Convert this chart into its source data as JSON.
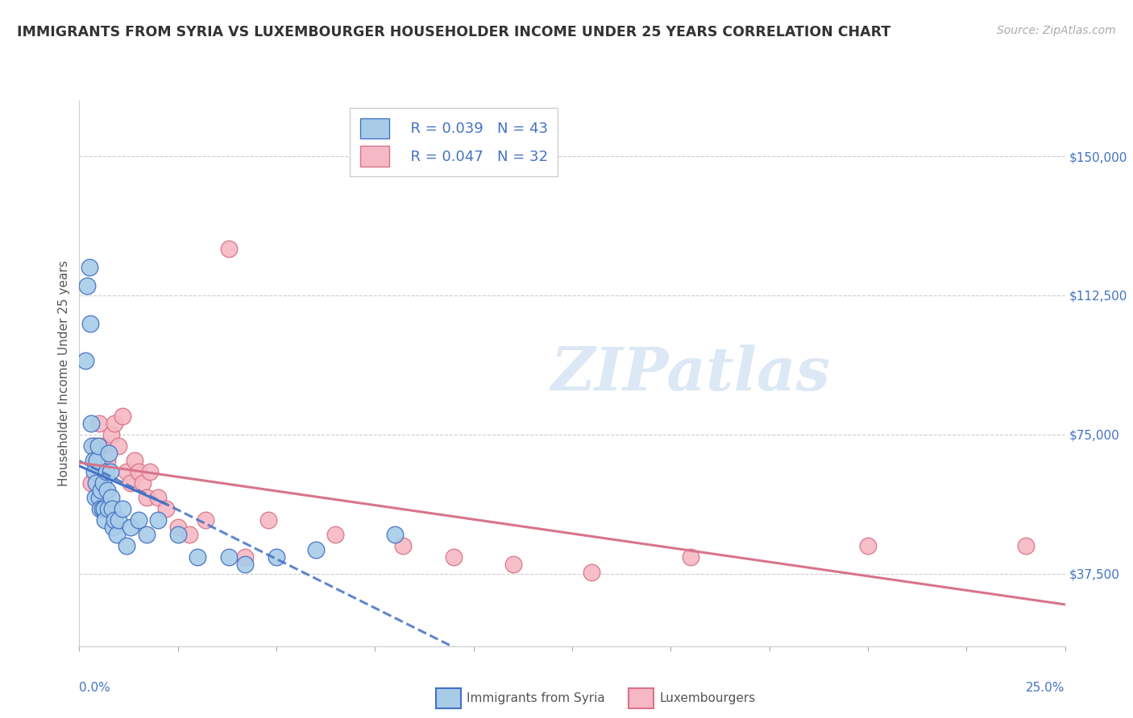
{
  "title": "IMMIGRANTS FROM SYRIA VS LUXEMBOURGER HOUSEHOLDER INCOME UNDER 25 YEARS CORRELATION CHART",
  "source": "Source: ZipAtlas.com",
  "ylabel": "Householder Income Under 25 years",
  "xmin": 0.0,
  "xmax": 0.25,
  "ymin": 18000,
  "ymax": 165000,
  "yticks": [
    37500,
    75000,
    112500,
    150000
  ],
  "ytick_labels": [
    "$37,500",
    "$75,000",
    "$112,500",
    "$150,000"
  ],
  "legend_r1": "R = 0.039",
  "legend_n1": "N = 43",
  "legend_r2": "R = 0.047",
  "legend_n2": "N = 32",
  "color_blue_fill": "#a8cce8",
  "color_blue_edge": "#4472c4",
  "color_pink_fill": "#f5b8c4",
  "color_pink_edge": "#d9748a",
  "color_blue_line": "#4472c4",
  "color_pink_line": "#d9748a",
  "watermark_color": "#dce8f5",
  "background_color": "#ffffff",
  "grid_color": "#cccccc",
  "tick_color": "#4472c4",
  "syria_x": [
    0.0015,
    0.002,
    0.0025,
    0.0028,
    0.003,
    0.0032,
    0.0035,
    0.0038,
    0.004,
    0.0042,
    0.0045,
    0.0048,
    0.005,
    0.0052,
    0.0055,
    0.0058,
    0.006,
    0.0062,
    0.0065,
    0.0068,
    0.007,
    0.0072,
    0.0075,
    0.0078,
    0.008,
    0.0082,
    0.0085,
    0.009,
    0.0095,
    0.01,
    0.011,
    0.012,
    0.013,
    0.015,
    0.017,
    0.02,
    0.025,
    0.03,
    0.038,
    0.042,
    0.05,
    0.06,
    0.08
  ],
  "syria_y": [
    95000,
    115000,
    120000,
    105000,
    78000,
    72000,
    68000,
    65000,
    58000,
    62000,
    68000,
    72000,
    58000,
    55000,
    60000,
    55000,
    62000,
    55000,
    52000,
    65000,
    60000,
    55000,
    70000,
    65000,
    58000,
    55000,
    50000,
    52000,
    48000,
    52000,
    55000,
    45000,
    50000,
    52000,
    48000,
    52000,
    48000,
    42000,
    42000,
    40000,
    42000,
    44000,
    48000
  ],
  "lux_x": [
    0.003,
    0.004,
    0.005,
    0.006,
    0.007,
    0.008,
    0.009,
    0.01,
    0.011,
    0.012,
    0.013,
    0.014,
    0.015,
    0.016,
    0.017,
    0.018,
    0.02,
    0.022,
    0.025,
    0.028,
    0.032,
    0.038,
    0.042,
    0.048,
    0.065,
    0.082,
    0.095,
    0.11,
    0.13,
    0.155,
    0.2,
    0.24
  ],
  "lux_y": [
    62000,
    72000,
    78000,
    72000,
    68000,
    75000,
    78000,
    72000,
    80000,
    65000,
    62000,
    68000,
    65000,
    62000,
    58000,
    65000,
    58000,
    55000,
    50000,
    48000,
    52000,
    125000,
    42000,
    52000,
    48000,
    45000,
    42000,
    40000,
    38000,
    42000,
    45000,
    45000
  ]
}
